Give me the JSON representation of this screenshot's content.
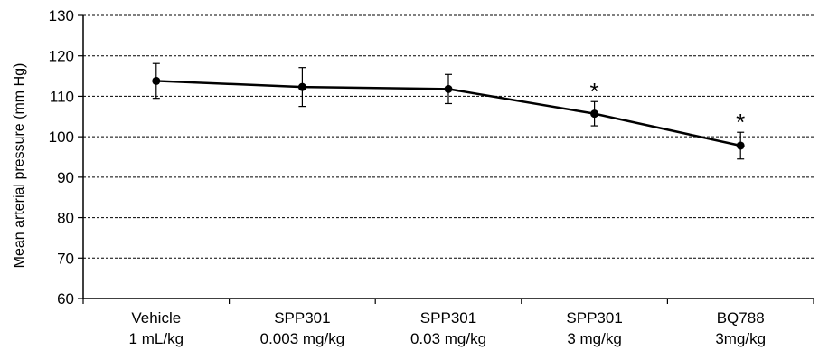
{
  "chart_data": {
    "type": "line",
    "ylabel": "Mean arterial pressure (mm Hg)",
    "xlabel": "",
    "ylim": [
      60,
      130
    ],
    "yticks": [
      60,
      70,
      80,
      90,
      100,
      110,
      120,
      130
    ],
    "grid": "horizontal dashed",
    "categories": [
      [
        "Vehicle",
        "1 mL/kg"
      ],
      [
        "SPP301",
        "0.003 mg/kg"
      ],
      [
        "SPP301",
        "0.03 mg/kg"
      ],
      [
        "SPP301",
        "3 mg/kg"
      ],
      [
        "BQ788",
        "3mg/kg"
      ]
    ],
    "series": [
      {
        "values": [
          113.8,
          112.3,
          111.8,
          105.7,
          97.8
        ],
        "errors": [
          4.3,
          4.8,
          3.6,
          3.0,
          3.3
        ]
      }
    ],
    "annotations": [
      "",
      "",
      "",
      "*",
      "*"
    ]
  }
}
